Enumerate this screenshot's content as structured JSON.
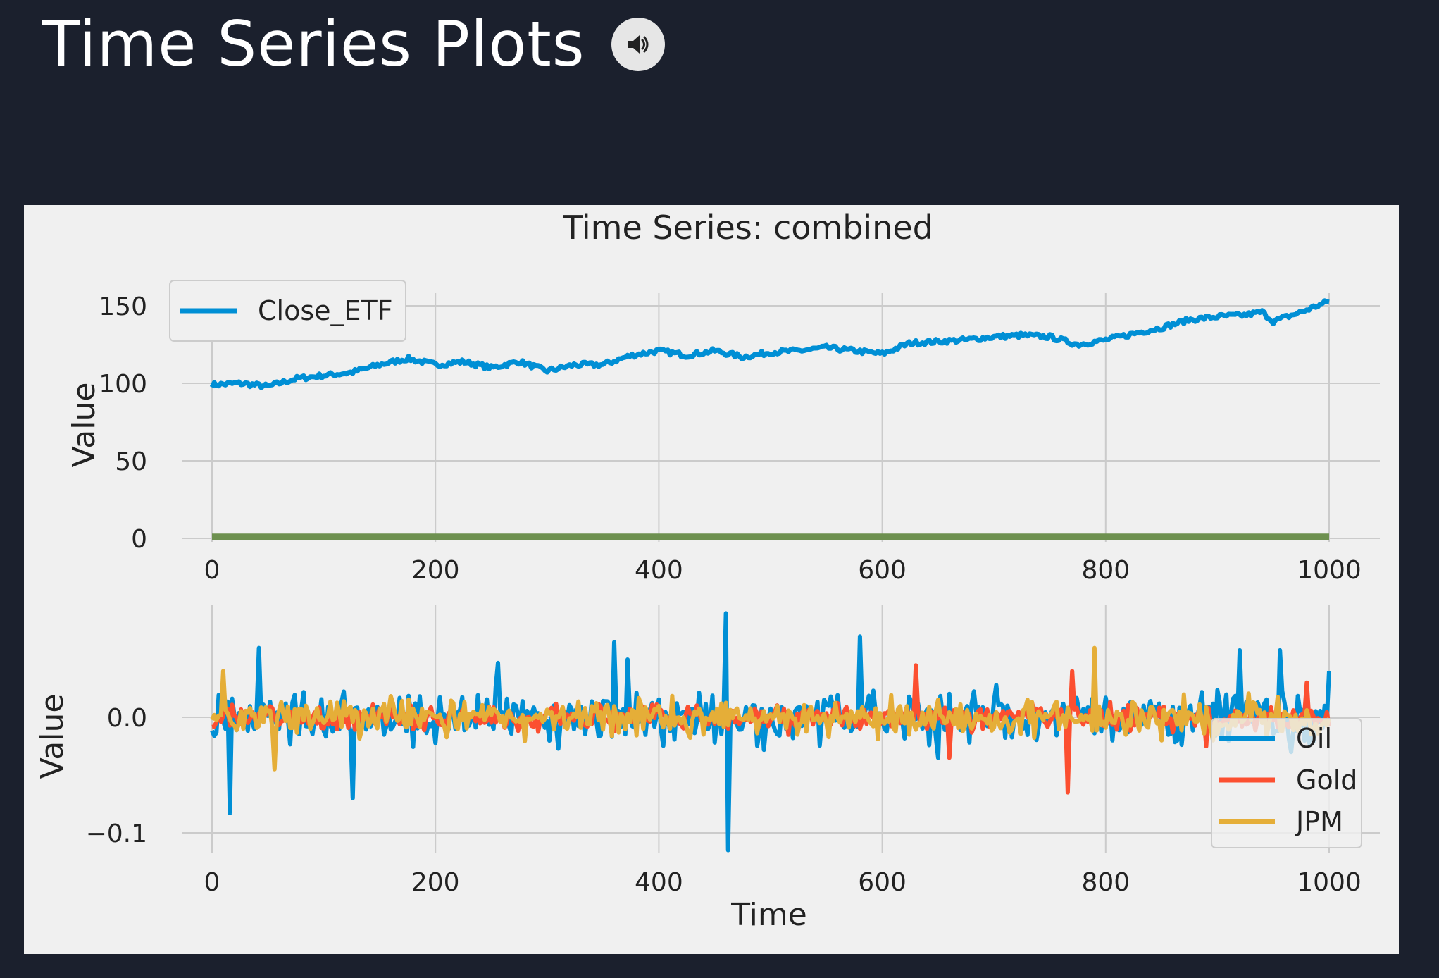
{
  "header": {
    "title": "Time Series Plots",
    "audio_icon": "speaker-icon"
  },
  "colors": {
    "background": "#1b202d",
    "figure_bg": "#f0f0f0",
    "grid": "#cbcbcb",
    "oil": "#008fd5",
    "gold": "#fc4f30",
    "jpm": "#e5ae38",
    "close_etf": "#008fd5",
    "zero_line": "#6d904f"
  },
  "chart_data": [
    {
      "type": "line",
      "title": "Time Series: combined",
      "xlabel": "",
      "ylabel": "Value",
      "xlim": [
        0,
        1000
      ],
      "ylim": [
        -8,
        158
      ],
      "xticks": [
        "0",
        "200",
        "400",
        "600",
        "800",
        "1000"
      ],
      "yticks": [
        "0",
        "50",
        "100",
        "150"
      ],
      "grid": true,
      "legend": "top-left",
      "series": [
        {
          "name": "Close_ETF",
          "x": [
            0,
            25,
            50,
            75,
            100,
            125,
            150,
            175,
            200,
            225,
            250,
            275,
            300,
            325,
            350,
            375,
            400,
            425,
            450,
            475,
            500,
            525,
            550,
            575,
            600,
            625,
            650,
            675,
            700,
            725,
            750,
            775,
            800,
            825,
            850,
            875,
            900,
            925,
            940,
            950,
            975,
            1000
          ],
          "values": [
            99,
            100,
            98,
            103,
            105,
            107,
            112,
            116,
            112,
            114,
            110,
            114,
            108,
            112,
            112,
            118,
            121,
            118,
            121,
            117,
            120,
            121,
            123,
            121,
            119,
            126,
            127,
            128,
            130,
            131,
            130,
            125,
            128,
            132,
            136,
            141,
            143,
            144,
            146,
            140,
            146,
            153
          ],
          "legend_label": "Close_ETF"
        },
        {
          "name": "zero",
          "x": [
            0,
            1000
          ],
          "values": [
            1,
            1
          ]
        }
      ]
    },
    {
      "type": "line",
      "title": "",
      "xlabel": "Time",
      "ylabel": "Value",
      "xlim": [
        0,
        1000
      ],
      "ylim": [
        -0.12,
        0.095
      ],
      "xticks": [
        "0",
        "200",
        "400",
        "600",
        "800",
        "1000"
      ],
      "yticks": [
        "−0.1",
        "0.0"
      ],
      "grid": true,
      "legend": "lower-right",
      "legend_entries": [
        "Oil",
        "Gold",
        "JPM"
      ],
      "series": [
        {
          "name": "Oil",
          "amplitude": 0.026,
          "peaks": [
            [
              15,
              -0.083
            ],
            [
              42,
              0.06
            ],
            [
              125,
              -0.07
            ],
            [
              255,
              0.047
            ],
            [
              360,
              0.065
            ],
            [
              372,
              0.05
            ],
            [
              460,
              0.09
            ],
            [
              462,
              -0.115
            ],
            [
              580,
              0.07
            ],
            [
              650,
              -0.035
            ],
            [
              920,
              0.058
            ],
            [
              955,
              0.058
            ],
            [
              1000,
              0.04
            ]
          ]
        },
        {
          "name": "Gold",
          "amplitude": 0.013,
          "peaks": [
            [
              630,
              0.045
            ],
            [
              660,
              -0.035
            ],
            [
              765,
              -0.065
            ],
            [
              770,
              0.04
            ],
            [
              890,
              -0.025
            ],
            [
              980,
              0.03
            ]
          ]
        },
        {
          "name": "JPM",
          "amplitude": 0.019,
          "peaks": [
            [
              10,
              0.04
            ],
            [
              55,
              -0.045
            ],
            [
              790,
              0.06
            ],
            [
              850,
              -0.02
            ]
          ]
        }
      ]
    }
  ]
}
